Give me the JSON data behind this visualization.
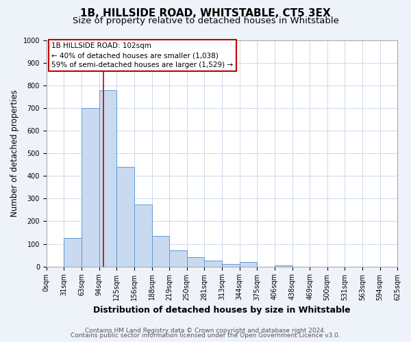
{
  "title": "1B, HILLSIDE ROAD, WHITSTABLE, CT5 3EX",
  "subtitle": "Size of property relative to detached houses in Whitstable",
  "xlabel": "Distribution of detached houses by size in Whitstable",
  "ylabel": "Number of detached properties",
  "bin_edges": [
    0,
    31,
    63,
    94,
    125,
    156,
    188,
    219,
    250,
    281,
    313,
    344,
    375,
    406,
    438,
    469,
    500,
    531,
    563,
    594,
    625
  ],
  "bar_heights": [
    0,
    125,
    700,
    780,
    440,
    275,
    135,
    70,
    40,
    25,
    10,
    20,
    0,
    5,
    0,
    0,
    0,
    0,
    0,
    0
  ],
  "bar_color": "#c9daf0",
  "bar_edge_color": "#5b9bd5",
  "vline_x": 102,
  "vline_color": "#c00000",
  "annotation_title": "1B HILLSIDE ROAD: 102sqm",
  "annotation_line1": "← 40% of detached houses are smaller (1,038)",
  "annotation_line2": "59% of semi-detached houses are larger (1,529) →",
  "annotation_box_edge": "#c00000",
  "ylim": [
    0,
    1000
  ],
  "yticks": [
    0,
    100,
    200,
    300,
    400,
    500,
    600,
    700,
    800,
    900,
    1000
  ],
  "tick_labels": [
    "0sqm",
    "31sqm",
    "63sqm",
    "94sqm",
    "125sqm",
    "156sqm",
    "188sqm",
    "219sqm",
    "250sqm",
    "281sqm",
    "313sqm",
    "344sqm",
    "375sqm",
    "406sqm",
    "438sqm",
    "469sqm",
    "500sqm",
    "531sqm",
    "563sqm",
    "594sqm",
    "625sqm"
  ],
  "footer1": "Contains HM Land Registry data © Crown copyright and database right 2024.",
  "footer2": "Contains public sector information licensed under the Open Government Licence v3.0.",
  "background_color": "#eef2f9",
  "plot_bg_color": "#ffffff",
  "title_fontsize": 11,
  "subtitle_fontsize": 9.5,
  "xlabel_fontsize": 9,
  "ylabel_fontsize": 8.5,
  "tick_fontsize": 7,
  "annot_fontsize": 7.5,
  "footer_fontsize": 6.5
}
